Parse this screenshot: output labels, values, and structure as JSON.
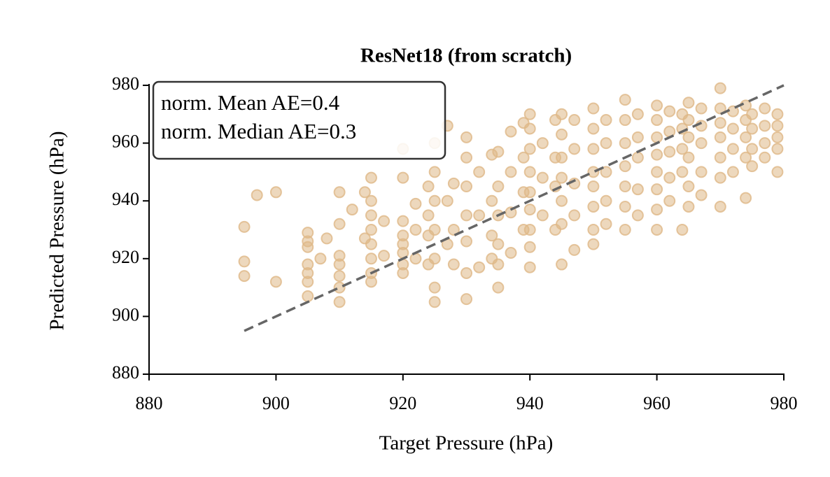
{
  "chart_data": {
    "type": "scatter",
    "title": "ResNet18 (from scratch)",
    "xlabel": "Target Pressure (hPa)",
    "ylabel": "Predicted Pressure (hPa)",
    "annotations": [
      "norm. Mean AE=0.4",
      "norm. Median AE=0.3"
    ],
    "xlim": [
      880,
      980
    ],
    "ylim": [
      880,
      980
    ],
    "xticks": [
      880,
      900,
      920,
      940,
      960,
      980
    ],
    "yticks": [
      880,
      900,
      920,
      940,
      960,
      980
    ],
    "color": "#deb887",
    "reference_line": {
      "color": "#666666",
      "x": [
        895,
        980
      ],
      "y": [
        895,
        980
      ]
    },
    "x": [
      895,
      895,
      895,
      897,
      900,
      900,
      905,
      905,
      905,
      905,
      905,
      905,
      905,
      907,
      908,
      910,
      910,
      910,
      910,
      910,
      910,
      910,
      912,
      914,
      914,
      915,
      915,
      915,
      915,
      915,
      915,
      915,
      915,
      917,
      917,
      920,
      920,
      920,
      920,
      920,
      920,
      920,
      920,
      922,
      922,
      922,
      924,
      924,
      924,
      924,
      925,
      925,
      925,
      925,
      925,
      925,
      925,
      927,
      927,
      927,
      928,
      928,
      928,
      930,
      930,
      930,
      930,
      930,
      930,
      930,
      932,
      932,
      932,
      934,
      934,
      934,
      934,
      935,
      935,
      935,
      935,
      935,
      935,
      937,
      937,
      937,
      937,
      939,
      939,
      939,
      939,
      940,
      940,
      940,
      940,
      940,
      940,
      940,
      940,
      940,
      942,
      942,
      942,
      944,
      944,
      944,
      944,
      945,
      945,
      945,
      945,
      945,
      945,
      945,
      947,
      947,
      947,
      947,
      947,
      950,
      950,
      950,
      950,
      950,
      950,
      950,
      950,
      952,
      952,
      952,
      952,
      952,
      955,
      955,
      955,
      955,
      955,
      955,
      955,
      957,
      957,
      957,
      957,
      957,
      960,
      960,
      960,
      960,
      960,
      960,
      960,
      960,
      962,
      962,
      962,
      962,
      962,
      964,
      964,
      964,
      964,
      964,
      965,
      965,
      965,
      965,
      965,
      965,
      967,
      967,
      967,
      967,
      967,
      970,
      970,
      970,
      970,
      970,
      970,
      970,
      972,
      972,
      972,
      972,
      974,
      974,
      974,
      974,
      974,
      975,
      975,
      975,
      975,
      977,
      977,
      977,
      977,
      979,
      979,
      979,
      979,
      979
    ],
    "y": [
      931,
      919,
      914,
      942,
      943,
      912,
      929,
      926,
      924,
      918,
      915,
      912,
      907,
      920,
      927,
      943,
      932,
      921,
      918,
      914,
      910,
      905,
      937,
      943,
      927,
      948,
      940,
      935,
      930,
      925,
      920,
      915,
      912,
      933,
      921,
      958,
      948,
      933,
      928,
      925,
      922,
      918,
      915,
      939,
      930,
      920,
      945,
      935,
      928,
      918,
      960,
      950,
      940,
      930,
      920,
      910,
      905,
      966,
      940,
      925,
      946,
      930,
      918,
      962,
      955,
      945,
      935,
      926,
      915,
      906,
      950,
      935,
      917,
      956,
      940,
      928,
      920,
      957,
      945,
      935,
      925,
      918,
      910,
      964,
      950,
      936,
      922,
      967,
      955,
      943,
      930,
      970,
      965,
      958,
      950,
      943,
      937,
      930,
      924,
      917,
      960,
      948,
      935,
      968,
      955,
      945,
      930,
      970,
      963,
      955,
      948,
      940,
      932,
      918,
      968,
      958,
      946,
      935,
      923,
      972,
      965,
      958,
      950,
      945,
      938,
      930,
      925,
      968,
      960,
      950,
      940,
      932,
      975,
      968,
      960,
      952,
      945,
      938,
      930,
      970,
      962,
      955,
      944,
      935,
      973,
      968,
      962,
      956,
      950,
      944,
      937,
      930,
      971,
      964,
      957,
      948,
      940,
      970,
      965,
      958,
      950,
      930,
      974,
      968,
      962,
      955,
      945,
      938,
      972,
      966,
      960,
      950,
      942,
      979,
      972,
      967,
      962,
      955,
      948,
      938,
      971,
      965,
      958,
      950,
      973,
      968,
      962,
      955,
      941,
      970,
      965,
      958,
      952,
      972,
      966,
      960,
      955,
      970,
      966,
      962,
      958,
      950
    ]
  }
}
